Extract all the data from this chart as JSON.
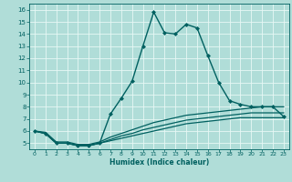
{
  "title": "",
  "xlabel": "Humidex (Indice chaleur)",
  "background_color": "#b0ddd8",
  "grid_color": "#e8f8f5",
  "line_color": "#006060",
  "xlim": [
    -0.5,
    23.5
  ],
  "ylim": [
    4.5,
    16.5
  ],
  "yticks": [
    5,
    6,
    7,
    8,
    9,
    10,
    11,
    12,
    13,
    14,
    15,
    16
  ],
  "xticks": [
    0,
    1,
    2,
    3,
    4,
    5,
    6,
    7,
    8,
    9,
    10,
    11,
    12,
    13,
    14,
    15,
    16,
    17,
    18,
    19,
    20,
    21,
    22,
    23
  ],
  "lines": [
    {
      "x": [
        0,
        1,
        2,
        3,
        4,
        5,
        6,
        7,
        8,
        9,
        10,
        11,
        12,
        13,
        14,
        15,
        16,
        17,
        18,
        19,
        20,
        21,
        22,
        23
      ],
      "y": [
        6.0,
        5.8,
        5.0,
        5.0,
        4.8,
        4.8,
        5.0,
        7.4,
        8.7,
        10.1,
        13.0,
        15.8,
        14.1,
        14.0,
        14.8,
        14.5,
        12.2,
        10.0,
        8.5,
        8.2,
        8.0,
        8.0,
        8.0,
        7.2
      ],
      "marker": "D",
      "markersize": 2.0,
      "linewidth": 1.0
    },
    {
      "x": [
        0,
        1,
        2,
        3,
        4,
        5,
        6,
        7,
        8,
        9,
        10,
        11,
        12,
        13,
        14,
        15,
        16,
        17,
        18,
        19,
        20,
        21,
        22,
        23
      ],
      "y": [
        6.0,
        5.9,
        5.1,
        5.1,
        4.9,
        4.9,
        5.1,
        5.5,
        5.8,
        6.1,
        6.4,
        6.7,
        6.9,
        7.1,
        7.3,
        7.4,
        7.5,
        7.6,
        7.7,
        7.8,
        7.9,
        8.0,
        8.0,
        8.0
      ],
      "marker": null,
      "markersize": 0,
      "linewidth": 0.9
    },
    {
      "x": [
        0,
        1,
        2,
        3,
        4,
        5,
        6,
        7,
        8,
        9,
        10,
        11,
        12,
        13,
        14,
        15,
        16,
        17,
        18,
        19,
        20,
        21,
        22,
        23
      ],
      "y": [
        6.0,
        5.8,
        5.0,
        5.0,
        4.8,
        4.8,
        5.0,
        5.3,
        5.6,
        5.8,
        6.1,
        6.3,
        6.5,
        6.7,
        6.9,
        7.0,
        7.1,
        7.2,
        7.3,
        7.4,
        7.5,
        7.5,
        7.5,
        7.5
      ],
      "marker": null,
      "markersize": 0,
      "linewidth": 0.9
    },
    {
      "x": [
        0,
        1,
        2,
        3,
        4,
        5,
        6,
        7,
        8,
        9,
        10,
        11,
        12,
        13,
        14,
        15,
        16,
        17,
        18,
        19,
        20,
        21,
        22,
        23
      ],
      "y": [
        6.0,
        5.8,
        5.0,
        5.0,
        4.8,
        4.8,
        5.0,
        5.2,
        5.4,
        5.6,
        5.8,
        6.0,
        6.2,
        6.4,
        6.6,
        6.7,
        6.8,
        6.9,
        7.0,
        7.1,
        7.1,
        7.1,
        7.1,
        7.1
      ],
      "marker": null,
      "markersize": 0,
      "linewidth": 0.9
    }
  ]
}
